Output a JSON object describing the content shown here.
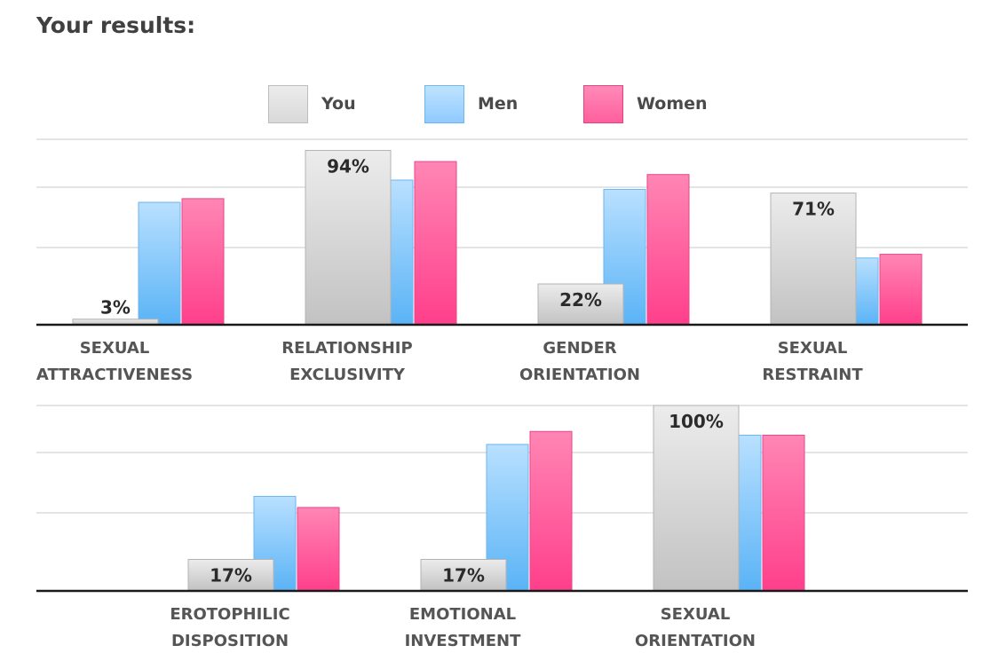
{
  "page": {
    "title": "Your results:"
  },
  "legend": [
    {
      "label": "You",
      "color": "#e2e2e2"
    },
    {
      "label": "Men",
      "color": "#9fd3ff"
    },
    {
      "label": "Women",
      "color": "#ff6fa6"
    }
  ],
  "chart_data": [
    {
      "type": "bar",
      "grid": true,
      "legend_position": "top",
      "ylim": [
        0,
        100
      ],
      "categories": [
        [
          "SEXUAL",
          "ATTRACTIVENESS"
        ],
        [
          "RELATIONSHIP",
          "EXCLUSIVITY"
        ],
        [
          "GENDER",
          "ORIENTATION"
        ],
        [
          "SEXUAL",
          "RESTRAINT"
        ]
      ],
      "series": [
        {
          "name": "You",
          "values": [
            3,
            94,
            22,
            71
          ],
          "data_labels": [
            "3%",
            "94%",
            "22%",
            "71%"
          ]
        },
        {
          "name": "Men",
          "values": [
            66,
            78,
            73,
            36
          ]
        },
        {
          "name": "Women",
          "values": [
            68,
            88,
            81,
            38
          ]
        }
      ]
    },
    {
      "type": "bar",
      "grid": true,
      "ylim": [
        0,
        100
      ],
      "categories": [
        [
          "EROTOPHILIC",
          "DISPOSITION"
        ],
        [
          "EMOTIONAL",
          "INVESTMENT"
        ],
        [
          "SEXUAL",
          "ORIENTATION"
        ]
      ],
      "series": [
        {
          "name": "You",
          "values": [
            17,
            17,
            100
          ],
          "data_labels": [
            "17%",
            "17%",
            "100%"
          ]
        },
        {
          "name": "Men",
          "values": [
            51,
            79,
            84
          ]
        },
        {
          "name": "Women",
          "values": [
            45,
            86,
            84
          ]
        }
      ]
    }
  ]
}
